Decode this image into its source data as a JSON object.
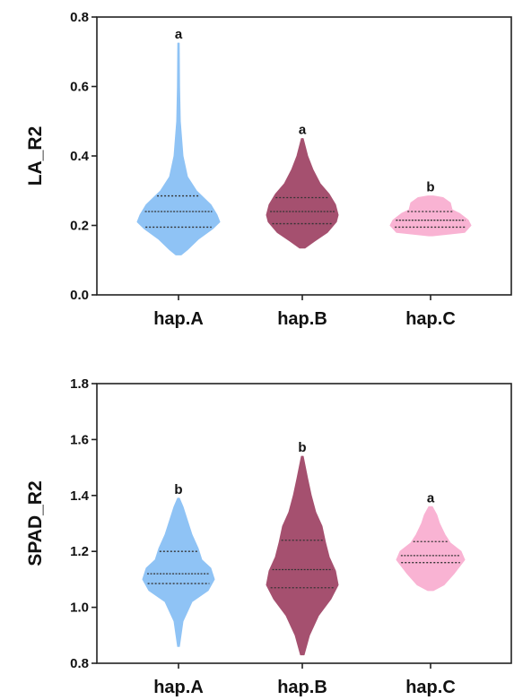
{
  "chart_data": [
    {
      "type": "violin",
      "ylabel": "LA_R2",
      "ylim": [
        0.0,
        0.8
      ],
      "yticks": [
        "0.0",
        "0.2",
        "0.4",
        "0.6",
        "0.8"
      ],
      "categories": [
        "hap.A",
        "hap.B",
        "hap.C"
      ],
      "colors": [
        "#8fc3f5",
        "#a5506f",
        "#f9b3d3"
      ],
      "significance": [
        "a",
        "a",
        "b"
      ],
      "groups": [
        {
          "name": "hap.A",
          "min": 0.115,
          "max": 0.725,
          "q1": 0.195,
          "median": 0.24,
          "q3": 0.285,
          "profile": [
            [
              0.115,
              3
            ],
            [
              0.13,
              10
            ],
            [
              0.16,
              22
            ],
            [
              0.19,
              38
            ],
            [
              0.21,
              46
            ],
            [
              0.23,
              43
            ],
            [
              0.26,
              36
            ],
            [
              0.3,
              20
            ],
            [
              0.34,
              10
            ],
            [
              0.4,
              5
            ],
            [
              0.5,
              2
            ],
            [
              0.6,
              1.2
            ],
            [
              0.725,
              0.8
            ]
          ]
        },
        {
          "name": "hap.B",
          "min": 0.135,
          "max": 0.45,
          "q1": 0.205,
          "median": 0.24,
          "q3": 0.28,
          "profile": [
            [
              0.135,
              3
            ],
            [
              0.155,
              14
            ],
            [
              0.18,
              28
            ],
            [
              0.21,
              38
            ],
            [
              0.23,
              40
            ],
            [
              0.26,
              37
            ],
            [
              0.29,
              30
            ],
            [
              0.32,
              20
            ],
            [
              0.36,
              12
            ],
            [
              0.4,
              6
            ],
            [
              0.45,
              1
            ]
          ]
        },
        {
          "name": "hap.C",
          "min": 0.17,
          "max": 0.285,
          "q1": 0.195,
          "median": 0.215,
          "q3": 0.24,
          "profile": [
            [
              0.17,
              2
            ],
            [
              0.18,
              38
            ],
            [
              0.2,
              45
            ],
            [
              0.215,
              42
            ],
            [
              0.235,
              32
            ],
            [
              0.245,
              24
            ],
            [
              0.265,
              22
            ],
            [
              0.28,
              14
            ],
            [
              0.285,
              3
            ]
          ]
        }
      ]
    },
    {
      "type": "violin",
      "ylabel": "SPAD_R2",
      "ylim": [
        0.8,
        1.8
      ],
      "yticks": [
        "0.8",
        "1.0",
        "1.2",
        "1.4",
        "1.6",
        "1.8"
      ],
      "categories": [
        "hap.A",
        "hap.B",
        "hap.C"
      ],
      "colors": [
        "#8fc3f5",
        "#a5506f",
        "#f9b3d3"
      ],
      "significance": [
        "b",
        "b",
        "a"
      ],
      "groups": [
        {
          "name": "hap.A",
          "min": 0.86,
          "max": 1.39,
          "q1": 1.085,
          "median": 1.12,
          "q3": 1.2,
          "profile": [
            [
              0.86,
              1
            ],
            [
              0.95,
              5
            ],
            [
              1.02,
              15
            ],
            [
              1.06,
              33
            ],
            [
              1.1,
              40
            ],
            [
              1.14,
              36
            ],
            [
              1.17,
              26
            ],
            [
              1.21,
              22
            ],
            [
              1.26,
              15
            ],
            [
              1.31,
              10
            ],
            [
              1.36,
              5
            ],
            [
              1.39,
              1
            ]
          ]
        },
        {
          "name": "hap.B",
          "min": 0.83,
          "max": 1.54,
          "q1": 1.07,
          "median": 1.135,
          "q3": 1.24,
          "profile": [
            [
              0.83,
              2
            ],
            [
              0.9,
              8
            ],
            [
              0.97,
              18
            ],
            [
              1.03,
              32
            ],
            [
              1.08,
              40
            ],
            [
              1.13,
              37
            ],
            [
              1.18,
              30
            ],
            [
              1.23,
              26
            ],
            [
              1.29,
              22
            ],
            [
              1.34,
              15
            ],
            [
              1.4,
              10
            ],
            [
              1.46,
              6
            ],
            [
              1.54,
              1
            ]
          ]
        },
        {
          "name": "hap.C",
          "min": 1.06,
          "max": 1.36,
          "q1": 1.16,
          "median": 1.185,
          "q3": 1.235,
          "profile": [
            [
              1.06,
              3
            ],
            [
              1.08,
              15
            ],
            [
              1.12,
              26
            ],
            [
              1.17,
              38
            ],
            [
              1.2,
              34
            ],
            [
              1.23,
              22
            ],
            [
              1.26,
              16
            ],
            [
              1.3,
              10
            ],
            [
              1.33,
              7
            ],
            [
              1.36,
              2
            ]
          ]
        }
      ]
    }
  ]
}
